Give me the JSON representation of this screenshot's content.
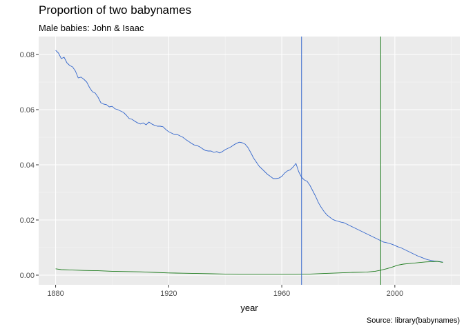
{
  "chart_data": {
    "type": "line",
    "title": "Proportion of two babynames",
    "subtitle": "Male babies:  John & Isaac",
    "caption": "Source:  library(babynames)",
    "xlabel": "year",
    "ylabel": "",
    "xlim": [
      1874,
      2023
    ],
    "ylim": [
      -0.0035,
      0.0865
    ],
    "x_ticks": [
      1880,
      1920,
      1960,
      2000
    ],
    "y_ticks": [
      0.0,
      0.02,
      0.04,
      0.06,
      0.08
    ],
    "y_tick_labels": [
      "0.00",
      "0.02",
      "0.04",
      "0.06",
      "0.08"
    ],
    "grid": true,
    "legend": "none",
    "series": [
      {
        "color": "#3366cc",
        "points": [
          [
            1880,
            0.0815
          ],
          [
            1881,
            0.0805
          ],
          [
            1882,
            0.0785
          ],
          [
            1883,
            0.079
          ],
          [
            1884,
            0.077
          ],
          [
            1885,
            0.076
          ],
          [
            1886,
            0.0755
          ],
          [
            1887,
            0.074
          ],
          [
            1888,
            0.0715
          ],
          [
            1889,
            0.0718
          ],
          [
            1890,
            0.071
          ],
          [
            1891,
            0.07
          ],
          [
            1892,
            0.068
          ],
          [
            1893,
            0.0665
          ],
          [
            1894,
            0.066
          ],
          [
            1895,
            0.0645
          ],
          [
            1896,
            0.0625
          ],
          [
            1897,
            0.062
          ],
          [
            1898,
            0.0618
          ],
          [
            1899,
            0.061
          ],
          [
            1900,
            0.0612
          ],
          [
            1901,
            0.0603
          ],
          [
            1902,
            0.06
          ],
          [
            1903,
            0.0595
          ],
          [
            1904,
            0.059
          ],
          [
            1905,
            0.058
          ],
          [
            1906,
            0.0568
          ],
          [
            1907,
            0.0565
          ],
          [
            1908,
            0.0558
          ],
          [
            1909,
            0.0552
          ],
          [
            1910,
            0.0548
          ],
          [
            1911,
            0.0552
          ],
          [
            1912,
            0.0545
          ],
          [
            1913,
            0.0555
          ],
          [
            1914,
            0.0548
          ],
          [
            1915,
            0.0543
          ],
          [
            1916,
            0.054
          ],
          [
            1917,
            0.054
          ],
          [
            1918,
            0.0538
          ],
          [
            1919,
            0.0528
          ],
          [
            1920,
            0.052
          ],
          [
            1921,
            0.0515
          ],
          [
            1922,
            0.051
          ],
          [
            1923,
            0.051
          ],
          [
            1924,
            0.0505
          ],
          [
            1925,
            0.05
          ],
          [
            1926,
            0.0492
          ],
          [
            1927,
            0.0485
          ],
          [
            1928,
            0.0478
          ],
          [
            1929,
            0.0472
          ],
          [
            1930,
            0.047
          ],
          [
            1931,
            0.0465
          ],
          [
            1932,
            0.0458
          ],
          [
            1933,
            0.0452
          ],
          [
            1934,
            0.045
          ],
          [
            1935,
            0.045
          ],
          [
            1936,
            0.0445
          ],
          [
            1937,
            0.0448
          ],
          [
            1938,
            0.0443
          ],
          [
            1939,
            0.0448
          ],
          [
            1940,
            0.0455
          ],
          [
            1941,
            0.046
          ],
          [
            1942,
            0.0465
          ],
          [
            1943,
            0.0472
          ],
          [
            1944,
            0.0478
          ],
          [
            1945,
            0.0482
          ],
          [
            1946,
            0.048
          ],
          [
            1947,
            0.0475
          ],
          [
            1948,
            0.0463
          ],
          [
            1949,
            0.0445
          ],
          [
            1950,
            0.0425
          ],
          [
            1951,
            0.041
          ],
          [
            1952,
            0.0395
          ],
          [
            1953,
            0.0385
          ],
          [
            1954,
            0.0375
          ],
          [
            1955,
            0.0365
          ],
          [
            1956,
            0.0358
          ],
          [
            1957,
            0.035
          ],
          [
            1958,
            0.035
          ],
          [
            1959,
            0.0352
          ],
          [
            1960,
            0.0358
          ],
          [
            1961,
            0.037
          ],
          [
            1962,
            0.0378
          ],
          [
            1963,
            0.0382
          ],
          [
            1964,
            0.0392
          ],
          [
            1965,
            0.0405
          ],
          [
            1966,
            0.0375
          ],
          [
            1967,
            0.0355
          ],
          [
            1968,
            0.0345
          ],
          [
            1969,
            0.034
          ],
          [
            1970,
            0.0325
          ],
          [
            1971,
            0.0305
          ],
          [
            1972,
            0.0285
          ],
          [
            1973,
            0.0262
          ],
          [
            1974,
            0.0245
          ],
          [
            1975,
            0.023
          ],
          [
            1976,
            0.0218
          ],
          [
            1977,
            0.021
          ],
          [
            1978,
            0.0202
          ],
          [
            1979,
            0.0198
          ],
          [
            1980,
            0.0195
          ],
          [
            1981,
            0.0192
          ],
          [
            1982,
            0.019
          ],
          [
            1983,
            0.0185
          ],
          [
            1984,
            0.018
          ],
          [
            1985,
            0.0175
          ],
          [
            1986,
            0.017
          ],
          [
            1987,
            0.0165
          ],
          [
            1988,
            0.016
          ],
          [
            1989,
            0.0155
          ],
          [
            1990,
            0.015
          ],
          [
            1991,
            0.0145
          ],
          [
            1992,
            0.014
          ],
          [
            1993,
            0.0135
          ],
          [
            1994,
            0.013
          ],
          [
            1995,
            0.0125
          ],
          [
            1996,
            0.012
          ],
          [
            1997,
            0.0118
          ],
          [
            1998,
            0.0115
          ],
          [
            1999,
            0.0112
          ],
          [
            2000,
            0.0108
          ],
          [
            2001,
            0.0103
          ],
          [
            2002,
            0.01
          ],
          [
            2003,
            0.0095
          ],
          [
            2004,
            0.009
          ],
          [
            2005,
            0.0085
          ],
          [
            2006,
            0.008
          ],
          [
            2007,
            0.0075
          ],
          [
            2008,
            0.007
          ],
          [
            2009,
            0.0066
          ],
          [
            2010,
            0.0062
          ],
          [
            2011,
            0.0058
          ],
          [
            2012,
            0.0055
          ],
          [
            2013,
            0.0053
          ],
          [
            2014,
            0.0051
          ],
          [
            2015,
            0.005
          ],
          [
            2016,
            0.0049
          ],
          [
            2017,
            0.0047
          ]
        ]
      },
      {
        "color": "#1a7a1a",
        "points": [
          [
            1880,
            0.0023
          ],
          [
            1882,
            0.002
          ],
          [
            1885,
            0.0019
          ],
          [
            1890,
            0.0017
          ],
          [
            1895,
            0.0016
          ],
          [
            1900,
            0.0014
          ],
          [
            1905,
            0.0013
          ],
          [
            1910,
            0.0012
          ],
          [
            1915,
            0.001
          ],
          [
            1920,
            0.0008
          ],
          [
            1925,
            0.0007
          ],
          [
            1930,
            0.0006
          ],
          [
            1935,
            0.0005
          ],
          [
            1940,
            0.0004
          ],
          [
            1945,
            0.0003
          ],
          [
            1950,
            0.0003
          ],
          [
            1955,
            0.0003
          ],
          [
            1960,
            0.0003
          ],
          [
            1965,
            0.0003
          ],
          [
            1970,
            0.0004
          ],
          [
            1975,
            0.0006
          ],
          [
            1980,
            0.0008
          ],
          [
            1985,
            0.001
          ],
          [
            1990,
            0.0011
          ],
          [
            1993,
            0.0014
          ],
          [
            1995,
            0.0018
          ],
          [
            1997,
            0.0023
          ],
          [
            1999,
            0.0029
          ],
          [
            2001,
            0.0036
          ],
          [
            2003,
            0.004
          ],
          [
            2005,
            0.0042
          ],
          [
            2007,
            0.0044
          ],
          [
            2009,
            0.0046
          ],
          [
            2011,
            0.0048
          ],
          [
            2013,
            0.0049
          ],
          [
            2015,
            0.005
          ],
          [
            2017,
            0.0046
          ]
        ]
      }
    ],
    "reference_lines": [
      {
        "x": 1967,
        "color": "#3366cc"
      },
      {
        "x": 1995,
        "color": "#1a7a1a"
      }
    ]
  }
}
